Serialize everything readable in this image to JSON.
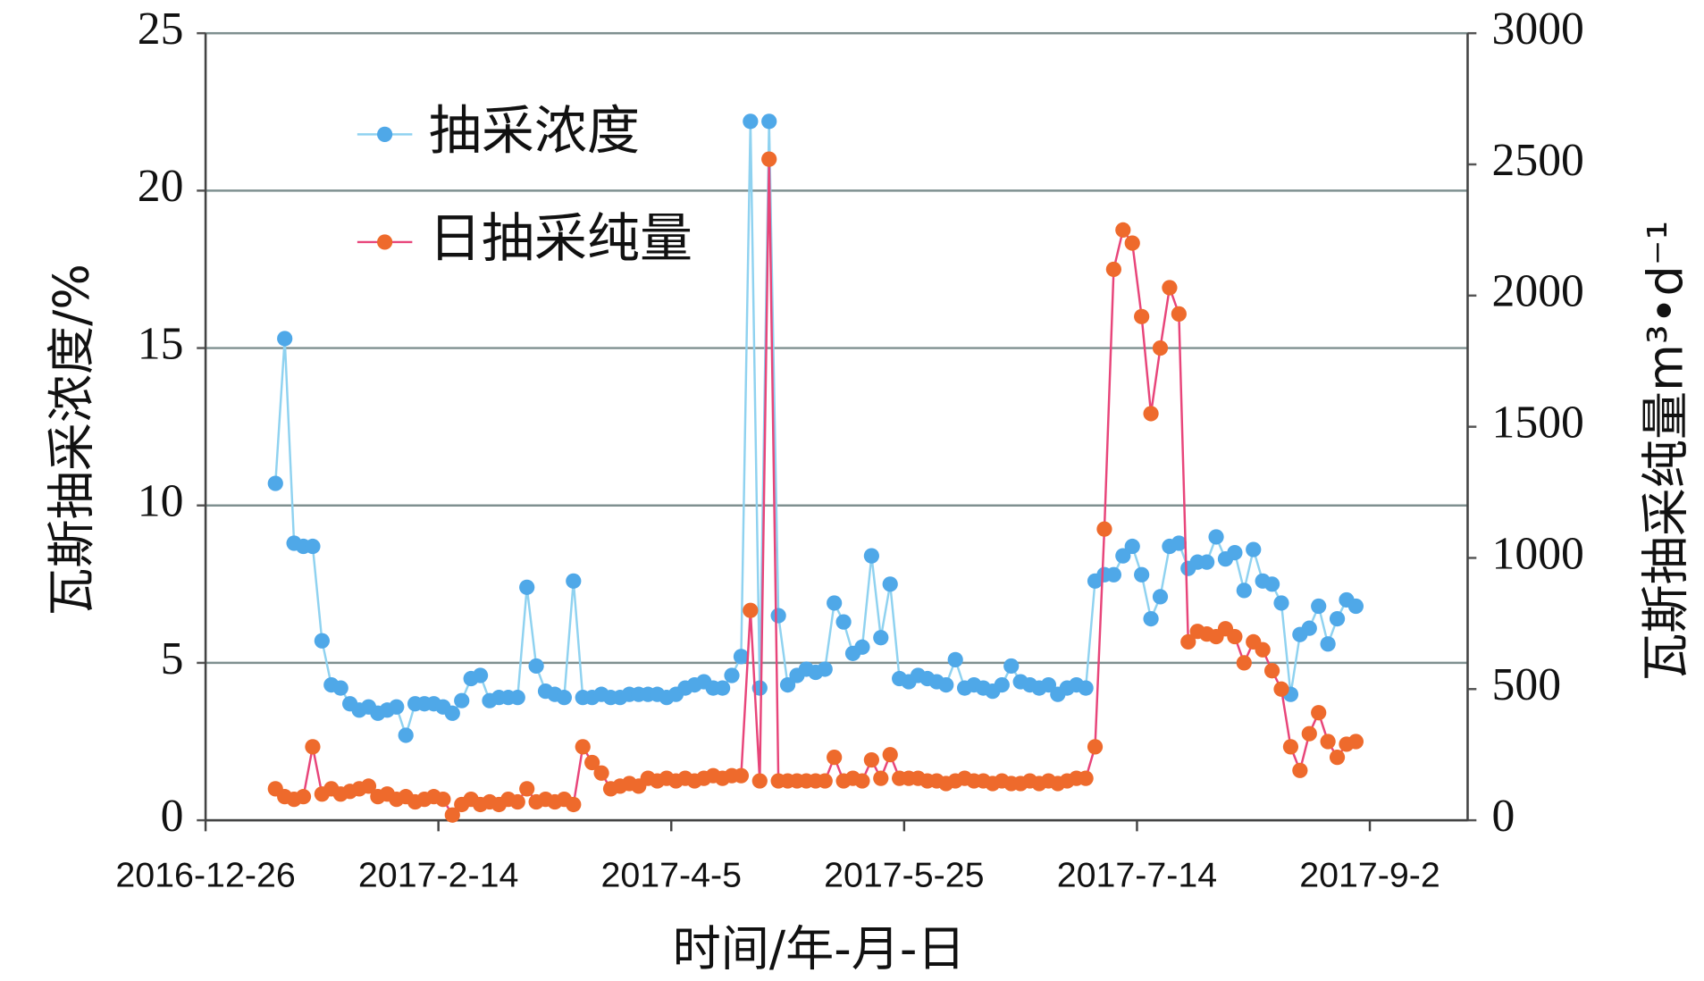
{
  "chart_data": {
    "type": "line",
    "x_label": "时间/年-月-日",
    "y_label": "瓦斯抽采浓度/%",
    "y2_label": "瓦斯抽采纯量m³•d⁻¹",
    "x": [
      "2017-1-10",
      "2017-1-12",
      "2017-1-14",
      "2017-1-16",
      "2017-1-18",
      "2017-1-20",
      "2017-1-22",
      "2017-1-24",
      "2017-1-26",
      "2017-1-28",
      "2017-1-30",
      "2017-2-1",
      "2017-2-3",
      "2017-2-5",
      "2017-2-7",
      "2017-2-9",
      "2017-2-11",
      "2017-2-13",
      "2017-2-15",
      "2017-2-17",
      "2017-2-19",
      "2017-2-21",
      "2017-2-23",
      "2017-2-25",
      "2017-2-27",
      "2017-3-1",
      "2017-3-3",
      "2017-3-5",
      "2017-3-7",
      "2017-3-9",
      "2017-3-11",
      "2017-3-13",
      "2017-3-15",
      "2017-3-17",
      "2017-3-19",
      "2017-3-21",
      "2017-3-23",
      "2017-3-25",
      "2017-3-27",
      "2017-3-29",
      "2017-3-31",
      "2017-4-2",
      "2017-4-4",
      "2017-4-6",
      "2017-4-8",
      "2017-4-10",
      "2017-4-12",
      "2017-4-14",
      "2017-4-16",
      "2017-4-18",
      "2017-4-20",
      "2017-4-22",
      "2017-4-24",
      "2017-4-26",
      "2017-4-28",
      "2017-4-30",
      "2017-5-2",
      "2017-5-4",
      "2017-5-6",
      "2017-5-8",
      "2017-5-10",
      "2017-5-12",
      "2017-5-14",
      "2017-5-16",
      "2017-5-18",
      "2017-5-20",
      "2017-5-22",
      "2017-5-24",
      "2017-5-26",
      "2017-5-28",
      "2017-5-30",
      "2017-6-1",
      "2017-6-3",
      "2017-6-5",
      "2017-6-7",
      "2017-6-9",
      "2017-6-11",
      "2017-6-13",
      "2017-6-15",
      "2017-6-17",
      "2017-6-19",
      "2017-6-21",
      "2017-6-23",
      "2017-6-25",
      "2017-6-27",
      "2017-6-29",
      "2017-7-1",
      "2017-7-3",
      "2017-7-5",
      "2017-7-7",
      "2017-7-9",
      "2017-7-11",
      "2017-7-13",
      "2017-7-15",
      "2017-7-17",
      "2017-7-19",
      "2017-7-21",
      "2017-7-23",
      "2017-7-25",
      "2017-7-27",
      "2017-7-29",
      "2017-7-31",
      "2017-8-2",
      "2017-8-4",
      "2017-8-6",
      "2017-8-8",
      "2017-8-10",
      "2017-8-12",
      "2017-8-14",
      "2017-8-16",
      "2017-8-18",
      "2017-8-20",
      "2017-8-22",
      "2017-8-24",
      "2017-8-26",
      "2017-8-28",
      "2017-8-30"
    ],
    "series": [
      {
        "name": "抽采浓度",
        "color": "#4fa8e8",
        "line_color": "#8fd2f0",
        "values": [
          10.7,
          15.3,
          8.8,
          8.7,
          8.7,
          5.7,
          4.3,
          4.2,
          3.7,
          3.5,
          3.6,
          3.4,
          3.5,
          3.6,
          2.7,
          3.7,
          3.7,
          3.7,
          3.6,
          3.4,
          3.8,
          4.5,
          4.6,
          3.8,
          3.9,
          3.9,
          3.9,
          7.4,
          4.9,
          4.1,
          4.0,
          3.9,
          7.6,
          3.9,
          3.9,
          4.0,
          3.9,
          3.9,
          4.0,
          4.0,
          4.0,
          4.0,
          3.9,
          4.0,
          4.2,
          4.3,
          4.4,
          4.2,
          4.2,
          4.6,
          5.2,
          22.2,
          4.2,
          22.2,
          6.5,
          4.3,
          4.6,
          4.8,
          4.7,
          4.8,
          6.9,
          6.3,
          5.3,
          5.5,
          8.4,
          5.8,
          7.5,
          4.5,
          4.4,
          4.6,
          4.5,
          4.4,
          4.3,
          5.1,
          4.2,
          4.3,
          4.2,
          4.1,
          4.3,
          4.9,
          4.4,
          4.3,
          4.2,
          4.3,
          4.0,
          4.2,
          4.3,
          4.2,
          7.6,
          7.8,
          7.8,
          8.4,
          8.7,
          7.8,
          6.4,
          7.1,
          8.7,
          8.8,
          8.0,
          8.2,
          8.2,
          9.0,
          8.3,
          8.5,
          7.3,
          8.6,
          7.6,
          7.5,
          6.9,
          4.0,
          5.9,
          6.1,
          6.8,
          5.6,
          6.4,
          7.0,
          6.8
        ]
      },
      {
        "name": "日抽采纯量",
        "color": "#ee6a2c",
        "line_color": "#e8457a",
        "axis": "y2",
        "values": [
          120,
          90,
          80,
          90,
          280,
          100,
          120,
          100,
          110,
          120,
          130,
          90,
          100,
          80,
          90,
          70,
          80,
          90,
          80,
          20,
          60,
          80,
          60,
          70,
          60,
          80,
          70,
          120,
          70,
          80,
          70,
          80,
          60,
          280,
          220,
          180,
          120,
          130,
          140,
          130,
          160,
          150,
          160,
          150,
          160,
          150,
          160,
          170,
          160,
          170,
          170,
          800,
          150,
          2520,
          150,
          150,
          150,
          150,
          150,
          150,
          240,
          150,
          160,
          150,
          230,
          160,
          250,
          160,
          160,
          160,
          150,
          150,
          140,
          150,
          160,
          150,
          150,
          140,
          150,
          140,
          140,
          150,
          140,
          150,
          140,
          150,
          160,
          160,
          280,
          1110,
          2100,
          2250,
          2200,
          1920,
          1550,
          1800,
          2030,
          1930,
          680,
          720,
          710,
          700,
          730,
          700,
          600,
          680,
          650,
          570,
          500,
          280,
          190,
          330,
          410,
          300,
          240,
          290,
          300
        ]
      }
    ],
    "xlim": [
      "2016-12-26",
      "2017-9-23"
    ],
    "xticks": [
      "2016-12-26",
      "2017-2-14",
      "2017-4-5",
      "2017-5-25",
      "2017-7-14",
      "2017-9-2"
    ],
    "ylim": [
      0,
      25
    ],
    "yticks": [
      0,
      5,
      10,
      15,
      20,
      25
    ],
    "y2lim": [
      0,
      3000
    ],
    "y2ticks": [
      0,
      500,
      1000,
      1500,
      2000,
      2500,
      3000
    ],
    "grid": true,
    "legend": "upper left"
  }
}
